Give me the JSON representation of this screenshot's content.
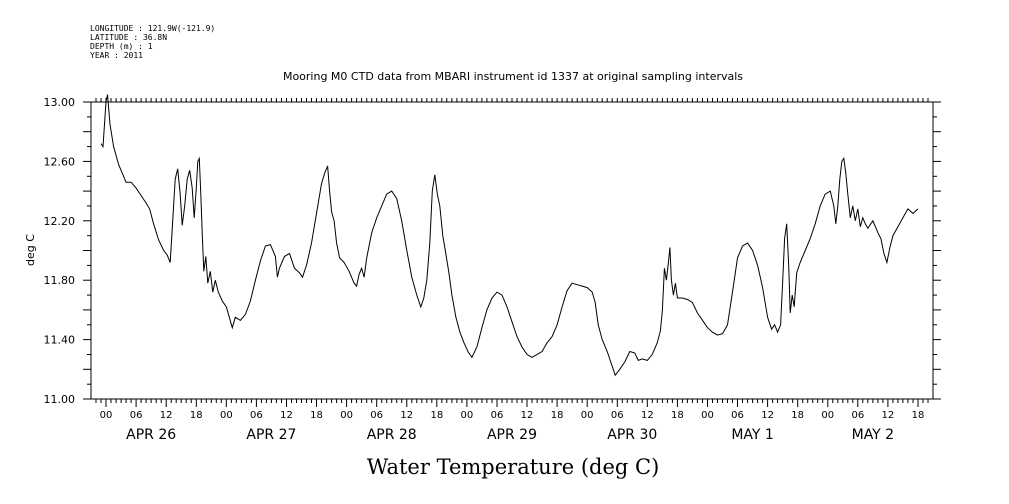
{
  "header": {
    "meta_lines": [
      "LONGITUDE : 121.9W(-121.9)",
      "LATITUDE : 36.8N",
      "DEPTH (m) : 1",
      "YEAR : 2011"
    ],
    "title": "Mooring M0 CTD data from MBARI instrument id 1337 at original sampling intervals"
  },
  "chart_data": {
    "type": "line",
    "title": "Mooring M0 CTD data from MBARI instrument id 1337 at original sampling intervals",
    "xlabel": "Water Temperature (deg C)",
    "ylabel": "deg C",
    "ylim": [
      11.0,
      13.0
    ],
    "y_ticks": [
      "11.00",
      "11.40",
      "11.80",
      "12.20",
      "12.60",
      "13.00"
    ],
    "xlim_hours": [
      -3,
      165
    ],
    "hour_ticks": [
      "00",
      "06",
      "12",
      "18"
    ],
    "days": [
      "APR 26",
      "APR 27",
      "APR 28",
      "APR 29",
      "APR 30",
      "MAY  1",
      "MAY  2"
    ],
    "grid": false,
    "series": [
      {
        "values": [
          [
            -1.0,
            12.72
          ],
          [
            -0.6,
            12.7
          ],
          [
            0.0,
            13.0
          ],
          [
            0.3,
            13.05
          ],
          [
            0.8,
            12.85
          ],
          [
            1.5,
            12.7
          ],
          [
            2.5,
            12.58
          ],
          [
            3.5,
            12.5
          ],
          [
            4.0,
            12.46
          ],
          [
            5.0,
            12.46
          ],
          [
            6.0,
            12.42
          ],
          [
            7.0,
            12.37
          ],
          [
            8.0,
            12.32
          ],
          [
            8.7,
            12.28
          ],
          [
            9.5,
            12.18
          ],
          [
            10.5,
            12.07
          ],
          [
            11.5,
            12.0
          ],
          [
            12.2,
            11.97
          ],
          [
            12.8,
            11.92
          ],
          [
            13.3,
            12.2
          ],
          [
            13.8,
            12.48
          ],
          [
            14.3,
            12.55
          ],
          [
            14.8,
            12.38
          ],
          [
            15.2,
            12.17
          ],
          [
            15.7,
            12.3
          ],
          [
            16.2,
            12.48
          ],
          [
            16.7,
            12.54
          ],
          [
            17.2,
            12.42
          ],
          [
            17.6,
            12.22
          ],
          [
            18.0,
            12.42
          ],
          [
            18.3,
            12.6
          ],
          [
            18.6,
            12.62
          ],
          [
            18.9,
            12.38
          ],
          [
            19.2,
            12.1
          ],
          [
            19.5,
            11.86
          ],
          [
            19.9,
            11.96
          ],
          [
            20.3,
            11.78
          ],
          [
            20.8,
            11.86
          ],
          [
            21.3,
            11.72
          ],
          [
            21.8,
            11.8
          ],
          [
            22.4,
            11.72
          ],
          [
            23.2,
            11.66
          ],
          [
            24.0,
            11.62
          ],
          [
            24.6,
            11.55
          ],
          [
            25.2,
            11.48
          ],
          [
            25.8,
            11.55
          ],
          [
            26.8,
            11.53
          ],
          [
            27.8,
            11.57
          ],
          [
            28.8,
            11.66
          ],
          [
            29.8,
            11.8
          ],
          [
            30.8,
            11.93
          ],
          [
            31.8,
            12.03
          ],
          [
            32.8,
            12.04
          ],
          [
            33.8,
            11.96
          ],
          [
            34.2,
            11.82
          ],
          [
            34.6,
            11.88
          ],
          [
            35.6,
            11.96
          ],
          [
            36.6,
            11.98
          ],
          [
            37.6,
            11.88
          ],
          [
            38.6,
            11.85
          ],
          [
            39.2,
            11.82
          ],
          [
            40.0,
            11.9
          ],
          [
            41.0,
            12.05
          ],
          [
            42.0,
            12.25
          ],
          [
            43.0,
            12.45
          ],
          [
            43.6,
            12.52
          ],
          [
            44.2,
            12.57
          ],
          [
            44.6,
            12.4
          ],
          [
            45.0,
            12.26
          ],
          [
            45.5,
            12.2
          ],
          [
            46.0,
            12.05
          ],
          [
            46.6,
            11.95
          ],
          [
            47.5,
            11.92
          ],
          [
            48.5,
            11.86
          ],
          [
            49.5,
            11.78
          ],
          [
            50.0,
            11.76
          ],
          [
            50.5,
            11.84
          ],
          [
            51.0,
            11.88
          ],
          [
            51.5,
            11.82
          ],
          [
            52.0,
            11.95
          ],
          [
            53.0,
            12.12
          ],
          [
            54.0,
            12.22
          ],
          [
            55.0,
            12.3
          ],
          [
            56.0,
            12.38
          ],
          [
            57.0,
            12.4
          ],
          [
            58.0,
            12.35
          ],
          [
            59.0,
            12.2
          ],
          [
            60.0,
            12.0
          ],
          [
            61.0,
            11.82
          ],
          [
            62.0,
            11.7
          ],
          [
            62.8,
            11.62
          ],
          [
            63.4,
            11.68
          ],
          [
            64.0,
            11.8
          ],
          [
            64.6,
            12.05
          ],
          [
            65.1,
            12.4
          ],
          [
            65.6,
            12.51
          ],
          [
            66.1,
            12.38
          ],
          [
            66.6,
            12.3
          ],
          [
            67.2,
            12.1
          ],
          [
            67.8,
            11.98
          ],
          [
            68.4,
            11.85
          ],
          [
            69.0,
            11.7
          ],
          [
            69.8,
            11.55
          ],
          [
            70.6,
            11.45
          ],
          [
            71.4,
            11.38
          ],
          [
            72.2,
            11.32
          ],
          [
            73.0,
            11.28
          ],
          [
            74.0,
            11.35
          ],
          [
            75.0,
            11.48
          ],
          [
            76.0,
            11.6
          ],
          [
            77.0,
            11.68
          ],
          [
            78.0,
            11.72
          ],
          [
            79.0,
            11.7
          ],
          [
            80.0,
            11.62
          ],
          [
            81.0,
            11.52
          ],
          [
            82.0,
            11.42
          ],
          [
            83.0,
            11.35
          ],
          [
            84.0,
            11.3
          ],
          [
            85.0,
            11.28
          ],
          [
            86.0,
            11.3
          ],
          [
            87.0,
            11.32
          ],
          [
            88.0,
            11.38
          ],
          [
            89.0,
            11.42
          ],
          [
            90.0,
            11.5
          ],
          [
            91.0,
            11.62
          ],
          [
            92.0,
            11.73
          ],
          [
            93.0,
            11.78
          ],
          [
            94.0,
            11.77
          ],
          [
            95.0,
            11.76
          ],
          [
            96.0,
            11.75
          ],
          [
            97.0,
            11.72
          ],
          [
            97.6,
            11.65
          ],
          [
            98.2,
            11.5
          ],
          [
            99.0,
            11.4
          ],
          [
            100.0,
            11.32
          ],
          [
            101.0,
            11.22
          ],
          [
            101.6,
            11.16
          ],
          [
            102.5,
            11.2
          ],
          [
            103.5,
            11.25
          ],
          [
            104.5,
            11.32
          ],
          [
            105.5,
            11.31
          ],
          [
            106.2,
            11.26
          ],
          [
            107.0,
            11.27
          ],
          [
            108.0,
            11.26
          ],
          [
            109.0,
            11.3
          ],
          [
            110.0,
            11.38
          ],
          [
            110.6,
            11.46
          ],
          [
            111.0,
            11.6
          ],
          [
            111.4,
            11.88
          ],
          [
            111.8,
            11.8
          ],
          [
            112.2,
            11.92
          ],
          [
            112.5,
            12.02
          ],
          [
            112.8,
            11.8
          ],
          [
            113.2,
            11.7
          ],
          [
            113.6,
            11.78
          ],
          [
            114.0,
            11.68
          ],
          [
            115.0,
            11.68
          ],
          [
            116.0,
            11.67
          ],
          [
            117.0,
            11.65
          ],
          [
            118.0,
            11.58
          ],
          [
            119.0,
            11.53
          ],
          [
            120.0,
            11.48
          ],
          [
            121.0,
            11.45
          ],
          [
            122.0,
            11.43
          ],
          [
            123.0,
            11.44
          ],
          [
            124.0,
            11.5
          ],
          [
            125.0,
            11.72
          ],
          [
            126.0,
            11.95
          ],
          [
            127.0,
            12.03
          ],
          [
            128.0,
            12.05
          ],
          [
            129.0,
            12.0
          ],
          [
            130.0,
            11.9
          ],
          [
            131.0,
            11.75
          ],
          [
            132.0,
            11.55
          ],
          [
            132.8,
            11.47
          ],
          [
            133.4,
            11.5
          ],
          [
            134.0,
            11.45
          ],
          [
            134.6,
            11.5
          ],
          [
            135.0,
            11.78
          ],
          [
            135.4,
            12.08
          ],
          [
            135.8,
            12.18
          ],
          [
            136.2,
            11.9
          ],
          [
            136.5,
            11.58
          ],
          [
            136.9,
            11.7
          ],
          [
            137.3,
            11.62
          ],
          [
            137.8,
            11.85
          ],
          [
            138.5,
            11.92
          ],
          [
            139.5,
            12.0
          ],
          [
            140.5,
            12.08
          ],
          [
            141.5,
            12.18
          ],
          [
            142.5,
            12.3
          ],
          [
            143.5,
            12.38
          ],
          [
            144.5,
            12.4
          ],
          [
            145.2,
            12.3
          ],
          [
            145.6,
            12.18
          ],
          [
            146.0,
            12.3
          ],
          [
            146.4,
            12.48
          ],
          [
            146.8,
            12.6
          ],
          [
            147.2,
            12.62
          ],
          [
            147.6,
            12.52
          ],
          [
            148.0,
            12.38
          ],
          [
            148.5,
            12.22
          ],
          [
            149.0,
            12.3
          ],
          [
            149.5,
            12.2
          ],
          [
            150.0,
            12.28
          ],
          [
            150.5,
            12.16
          ],
          [
            151.0,
            12.22
          ],
          [
            151.5,
            12.18
          ],
          [
            152.0,
            12.15
          ],
          [
            153.0,
            12.2
          ],
          [
            154.0,
            12.12
          ],
          [
            154.6,
            12.08
          ],
          [
            155.2,
            11.98
          ],
          [
            155.8,
            11.92
          ],
          [
            156.4,
            12.02
          ],
          [
            157.0,
            12.1
          ],
          [
            158.0,
            12.16
          ],
          [
            159.0,
            12.22
          ],
          [
            160.0,
            12.28
          ],
          [
            161.0,
            12.25
          ],
          [
            162.0,
            12.28
          ]
        ]
      }
    ]
  }
}
